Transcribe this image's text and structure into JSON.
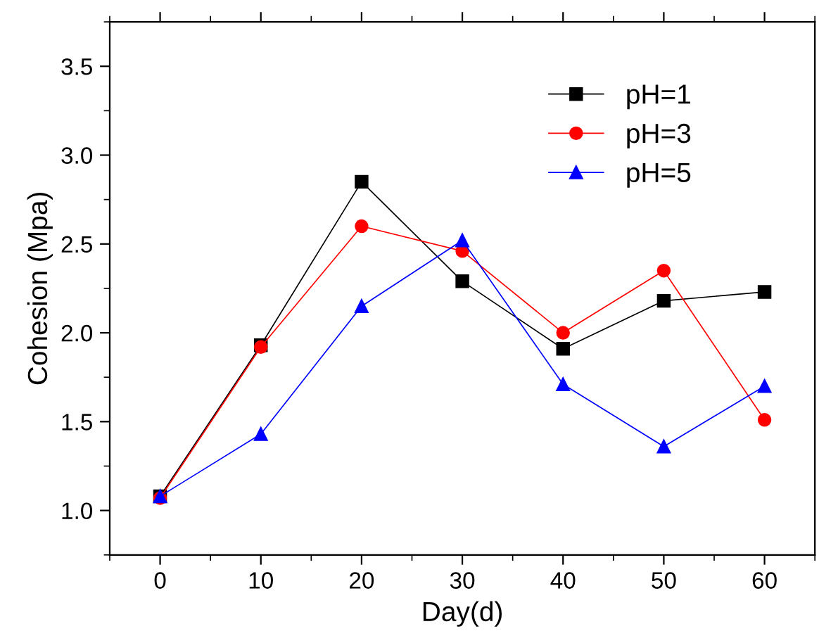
{
  "chart_data": {
    "type": "line",
    "xlabel": "Day(d)",
    "ylabel": "Cohesion (Mpa)",
    "x": [
      0,
      10,
      20,
      30,
      40,
      50,
      60
    ],
    "series": [
      {
        "name": "pH=1",
        "color": "#000000",
        "marker": "square",
        "values": [
          1.08,
          1.93,
          2.85,
          2.29,
          1.91,
          2.18,
          2.23
        ]
      },
      {
        "name": "pH=3",
        "color": "#ff0000",
        "marker": "circle",
        "values": [
          1.07,
          1.92,
          2.6,
          2.46,
          2.0,
          2.35,
          1.51
        ]
      },
      {
        "name": "pH=5",
        "color": "#0000ff",
        "marker": "triangle",
        "values": [
          1.08,
          1.43,
          2.15,
          2.52,
          1.71,
          1.36,
          1.7
        ]
      }
    ],
    "xlim": [
      -5,
      65
    ],
    "xticks": [
      0,
      10,
      20,
      30,
      40,
      50,
      60
    ],
    "ylim": [
      0.75,
      3.75
    ],
    "yticks": [
      {
        "value": 1,
        "label": "1.0"
      },
      1.5,
      {
        "value": 2,
        "label": "2.0"
      },
      2.5,
      {
        "value": 3,
        "label": "3.0"
      },
      3.5
    ],
    "grid": false,
    "legend": "top right"
  }
}
